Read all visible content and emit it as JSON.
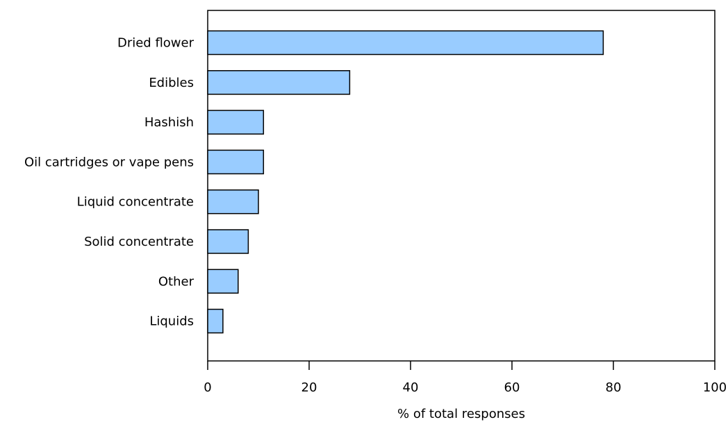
{
  "chart_data": {
    "type": "bar",
    "orientation": "horizontal",
    "categories": [
      "Dried flower",
      "Edibles",
      "Hashish",
      "Oil cartridges or vape pens",
      "Liquid concentrate",
      "Solid concentrate",
      "Other",
      "Liquids"
    ],
    "values": [
      78,
      28,
      11,
      11,
      10,
      8,
      6,
      3
    ],
    "title": "",
    "xlabel": "% of total responses",
    "ylabel": "",
    "xlim": [
      0,
      100
    ],
    "xticks": [
      0,
      20,
      40,
      60,
      80,
      100
    ],
    "xtick_labels": [
      "0",
      "20",
      "40",
      "60",
      "80",
      "100"
    ],
    "grid": false,
    "legend": "none",
    "bar_color": "#99ccff",
    "bar_edge_color": "#000000"
  }
}
